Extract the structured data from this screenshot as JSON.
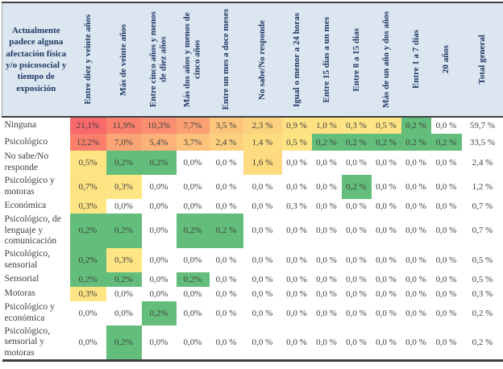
{
  "colors": {
    "header_bg": "#DCE6F1",
    "header_text": "#1F3864",
    "body_text": "#404040",
    "border_dark": "#3f3f3f",
    "border_side": "#a6a6a6",
    "scale_red_max": "#F8696B",
    "scale_yellow_mid": "#FFE584",
    "scale_green_min": "#63BE7B",
    "cell_empty": "#FFFFFF"
  },
  "table": {
    "corner_header": "Actualmente padece alguna afectación física y/o psicosocial y tiempo de exposición",
    "columns": [
      "Entre diez y veinte años",
      "Más de veinte años",
      "Entre cinco años y menos de diez años",
      "Más dos años y menos de cinco años",
      "Entre un mes a doce meses",
      "No sabe/No responde",
      "Igual o menor a 24 horas",
      "Entre 15 días a un mes",
      "Entre 8 a 15 días",
      "Más de un año y dos años",
      "Entre 1 a 7 días",
      "20 años",
      "Total general"
    ],
    "rows": [
      {
        "label": "Ninguna",
        "cells": [
          [
            "21,1%",
            "#F8696B"
          ],
          [
            "11,9%",
            "#F9816D"
          ],
          [
            "10,3%",
            "#FA8E70"
          ],
          [
            "7,7%",
            "#FB9F74"
          ],
          [
            "3,5 %",
            "#FDC47C"
          ],
          [
            "2,3 %",
            "#FDD27E"
          ],
          [
            "0,9 %",
            "#FFE283"
          ],
          [
            "1,0 %",
            "#FFE182"
          ],
          [
            "0,3 %",
            "#FFE584"
          ],
          [
            "0,5 %",
            "#FFE484"
          ],
          [
            "0,2 %",
            "#63BE7B"
          ],
          [
            "0,0 %",
            null
          ],
          [
            "59,7 %",
            null
          ]
        ]
      },
      {
        "label": "Psicológico",
        "cells": [
          [
            "12,2%",
            "#F97E6C"
          ],
          [
            "7,0%",
            "#FBA575"
          ],
          [
            "5,4%",
            "#FCB278"
          ],
          [
            "3,7%",
            "#FDC27B"
          ],
          [
            "2,4 %",
            "#FDD07E"
          ],
          [
            "1,4 %",
            "#FEDD81"
          ],
          [
            "0,5 %",
            "#FFE484"
          ],
          [
            "0,2 %",
            "#63BE7B"
          ],
          [
            "0,2 %",
            "#63BE7B"
          ],
          [
            "0,2 %",
            "#63BE7B"
          ],
          [
            "0,2 %",
            "#63BE7B"
          ],
          [
            "0,2 %",
            "#63BE7B"
          ],
          [
            "33,5 %",
            null
          ]
        ]
      },
      {
        "label": "No sabe/No responde",
        "cells": [
          [
            "0,5%",
            "#FFE484"
          ],
          [
            "0,2%",
            "#63BE7B"
          ],
          [
            "0,2%",
            "#63BE7B"
          ],
          [
            "0,0%",
            null
          ],
          [
            "0,0 %",
            null
          ],
          [
            "1,6 %",
            "#FEDB80"
          ],
          [
            "0,0 %",
            null
          ],
          [
            "0,0 %",
            null
          ],
          [
            "0,0 %",
            null
          ],
          [
            "0,0 %",
            null
          ],
          [
            "0,0 %",
            null
          ],
          [
            "0,0 %",
            null
          ],
          [
            "2,4 %",
            null
          ]
        ]
      },
      {
        "label": "Psicológico y motoras",
        "cells": [
          [
            "0,7%",
            "#FFE383"
          ],
          [
            "0,3%",
            "#FFE584"
          ],
          [
            "0,0%",
            null
          ],
          [
            "0,0%",
            null
          ],
          [
            "0,0 %",
            null
          ],
          [
            "0,0 %",
            null
          ],
          [
            "0,0 %",
            null
          ],
          [
            "0,0 %",
            null
          ],
          [
            "0,2 %",
            "#63BE7B"
          ],
          [
            "0,0 %",
            null
          ],
          [
            "0,0 %",
            null
          ],
          [
            "0,0 %",
            null
          ],
          [
            "1,2 %",
            null
          ]
        ]
      },
      {
        "label": "Económica",
        "cells": [
          [
            "0,3%",
            "#FFE584"
          ],
          [
            "0,0%",
            null
          ],
          [
            "0,0%",
            null
          ],
          [
            "0,0%",
            null
          ],
          [
            "0,0 %",
            null
          ],
          [
            "0,0 %",
            null
          ],
          [
            "0,3 %",
            null
          ],
          [
            "0,0 %",
            null
          ],
          [
            "0,0 %",
            null
          ],
          [
            "0,0 %",
            null
          ],
          [
            "0,0 %",
            null
          ],
          [
            "0,0 %",
            null
          ],
          [
            "0,7 %",
            null
          ]
        ]
      },
      {
        "label": "Psicológico, de lenguaje y comunicación",
        "cells": [
          [
            "0,2%",
            "#63BE7B"
          ],
          [
            "0,2%",
            "#63BE7B"
          ],
          [
            "0,0%",
            null
          ],
          [
            "0,2%",
            "#63BE7B"
          ],
          [
            "0,2 %",
            "#63BE7B"
          ],
          [
            "0,0 %",
            null
          ],
          [
            "0,0 %",
            null
          ],
          [
            "0,0 %",
            null
          ],
          [
            "0,0 %",
            null
          ],
          [
            "0,0 %",
            null
          ],
          [
            "0,0 %",
            null
          ],
          [
            "0,0 %",
            null
          ],
          [
            "0,7 %",
            null
          ]
        ]
      },
      {
        "label": "Psicológico, sensorial",
        "cells": [
          [
            "0,2%",
            "#63BE7B"
          ],
          [
            "0,3%",
            "#FFE584"
          ],
          [
            "0,0%",
            null
          ],
          [
            "0,0%",
            null
          ],
          [
            "0,0 %",
            null
          ],
          [
            "0,0 %",
            null
          ],
          [
            "0,0 %",
            null
          ],
          [
            "0,0 %",
            null
          ],
          [
            "0,0 %",
            null
          ],
          [
            "0,0 %",
            null
          ],
          [
            "0,0 %",
            null
          ],
          [
            "0,0 %",
            null
          ],
          [
            "0,5 %",
            null
          ]
        ]
      },
      {
        "label": "Sensorial",
        "cells": [
          [
            "0,2%",
            "#63BE7B"
          ],
          [
            "0,2%",
            "#63BE7B"
          ],
          [
            "0,0%",
            null
          ],
          [
            "0,2%",
            "#63BE7B"
          ],
          [
            "0,0 %",
            null
          ],
          [
            "0,0 %",
            null
          ],
          [
            "0,0 %",
            null
          ],
          [
            "0,0 %",
            null
          ],
          [
            "0,0 %",
            null
          ],
          [
            "0,0 %",
            null
          ],
          [
            "0,0 %",
            null
          ],
          [
            "0,0 %",
            null
          ],
          [
            "0,5 %",
            null
          ]
        ]
      },
      {
        "label": "Motoras",
        "cells": [
          [
            "0,3%",
            "#FFE584"
          ],
          [
            "0,0%",
            null
          ],
          [
            "0,0%",
            null
          ],
          [
            "0,0%",
            null
          ],
          [
            "0,0 %",
            null
          ],
          [
            "0,0 %",
            null
          ],
          [
            "0,0 %",
            null
          ],
          [
            "0,0 %",
            null
          ],
          [
            "0,0 %",
            null
          ],
          [
            "0,0 %",
            null
          ],
          [
            "0,0 %",
            null
          ],
          [
            "0,0 %",
            null
          ],
          [
            "0,3 %",
            null
          ]
        ]
      },
      {
        "label": "Psicológico y económica",
        "cells": [
          [
            "0,0%",
            null
          ],
          [
            "0,0%",
            null
          ],
          [
            "0,2%",
            "#63BE7B"
          ],
          [
            "0,0%",
            null
          ],
          [
            "0,0 %",
            null
          ],
          [
            "0,0 %",
            null
          ],
          [
            "0,0 %",
            null
          ],
          [
            "0,0 %",
            null
          ],
          [
            "0,0 %",
            null
          ],
          [
            "0,0 %",
            null
          ],
          [
            "0,0 %",
            null
          ],
          [
            "0,0 %",
            null
          ],
          [
            "0,2 %",
            null
          ]
        ]
      },
      {
        "label": "Psicológico, sensorial y motoras",
        "cells": [
          [
            "0,0%",
            null
          ],
          [
            "0,2%",
            "#63BE7B"
          ],
          [
            "0,0%",
            null
          ],
          [
            "0,0%",
            null
          ],
          [
            "0,0 %",
            null
          ],
          [
            "0,0 %",
            null
          ],
          [
            "0,0 %",
            null
          ],
          [
            "0,0 %",
            null
          ],
          [
            "0,0 %",
            null
          ],
          [
            "0,0 %",
            null
          ],
          [
            "0,0 %",
            null
          ],
          [
            "0,0 %",
            null
          ],
          [
            "0,2 %",
            null
          ]
        ]
      }
    ]
  }
}
